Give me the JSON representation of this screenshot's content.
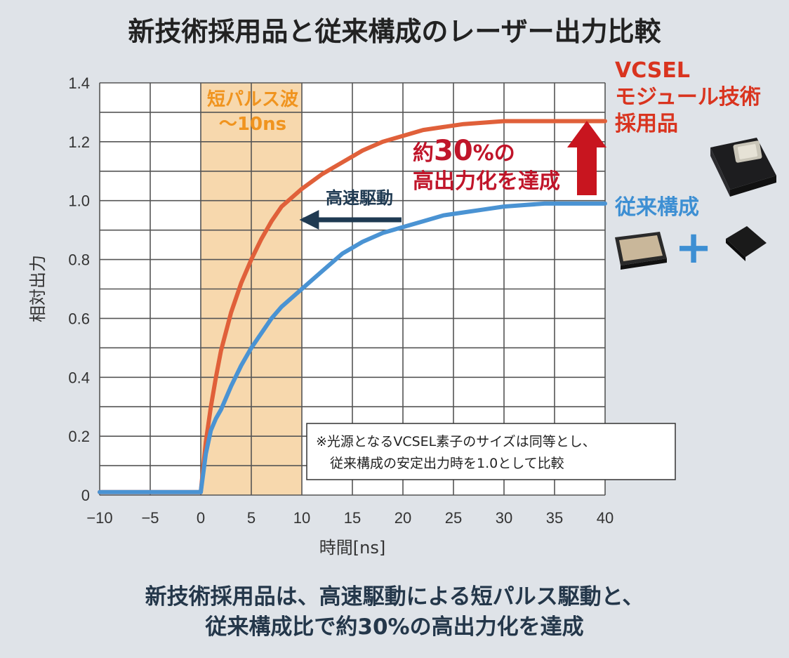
{
  "title": "新技術採用品と従来構成のレーザー出力比較",
  "footer": {
    "line1": "新技術採用品は、高速駆動による短パルス駆動と、",
    "line2": "従来構成比で約30%の高出力化を達成"
  },
  "annotations": {
    "band_line1": "短パルス波",
    "band_line2": "～10ns",
    "speed": "高速駆動",
    "gain_line1_prefix": "約",
    "gain_line1_number": "30",
    "gain_line1_suffix": "%の",
    "gain_line2": "高出力化を達成",
    "note_line1": "※光源となるVCSEL素子のサイズは同等とし、",
    "note_line2": "従来構成の安定出力時を1.0として比較"
  },
  "legend": {
    "new_line1": "VCSEL",
    "new_line2": "モジュール技術",
    "new_line3": "採用品",
    "old": "従来構成",
    "plus": "+"
  },
  "colors": {
    "new": "#e0603a",
    "old": "#4a93d3",
    "band": "#f7d8ad",
    "arrow_red": "#c8151f",
    "arrow_navy": "#1f3a52"
  },
  "chart_data": {
    "type": "line",
    "title": "新技術採用品と従来構成のレーザー出力比較",
    "xlabel": "時間[ns]",
    "ylabel": "相対出力",
    "xlim": [
      -10,
      40
    ],
    "ylim": [
      0,
      1.4
    ],
    "xticks": [
      -10,
      -5,
      0,
      5,
      10,
      15,
      20,
      25,
      30,
      35,
      40
    ],
    "xtick_labels": [
      "−10",
      "−5",
      "0",
      "5",
      "10",
      "15",
      "20",
      "25",
      "30",
      "35",
      "40"
    ],
    "yticks": [
      0,
      0.2,
      0.4,
      0.6,
      0.8,
      1.0,
      1.2,
      1.4
    ],
    "ytick_labels": [
      "0",
      "0.2",
      "0.4",
      "0.6",
      "0.8",
      "1.0",
      "1.2",
      "1.4"
    ],
    "grid": true,
    "highlight_band": [
      0,
      10
    ],
    "series": [
      {
        "name": "VCSEL モジュール技術 採用品",
        "x": [
          -10,
          -5,
          0,
          0.5,
          1,
          1.5,
          2,
          3,
          4,
          5,
          6,
          7,
          8,
          9,
          10,
          12,
          14,
          16,
          18,
          20,
          22,
          24,
          26,
          28,
          30,
          32,
          34,
          36,
          38,
          40
        ],
        "y": [
          0.01,
          0.01,
          0.01,
          0.18,
          0.3,
          0.4,
          0.49,
          0.62,
          0.72,
          0.8,
          0.87,
          0.93,
          0.98,
          1.01,
          1.04,
          1.09,
          1.13,
          1.17,
          1.2,
          1.22,
          1.24,
          1.25,
          1.26,
          1.265,
          1.27,
          1.27,
          1.27,
          1.27,
          1.27,
          1.27
        ]
      },
      {
        "name": "従来構成",
        "x": [
          -10,
          -5,
          0,
          0.5,
          1,
          1.5,
          2,
          3,
          4,
          5,
          6,
          7,
          8,
          9,
          10,
          12,
          14,
          16,
          18,
          20,
          22,
          24,
          26,
          28,
          30,
          32,
          34,
          36,
          38,
          40
        ],
        "y": [
          0.01,
          0.01,
          0.01,
          0.14,
          0.22,
          0.26,
          0.29,
          0.37,
          0.44,
          0.5,
          0.55,
          0.6,
          0.64,
          0.67,
          0.7,
          0.76,
          0.82,
          0.86,
          0.89,
          0.91,
          0.93,
          0.95,
          0.96,
          0.97,
          0.98,
          0.985,
          0.99,
          0.99,
          0.99,
          0.99
        ]
      }
    ]
  }
}
